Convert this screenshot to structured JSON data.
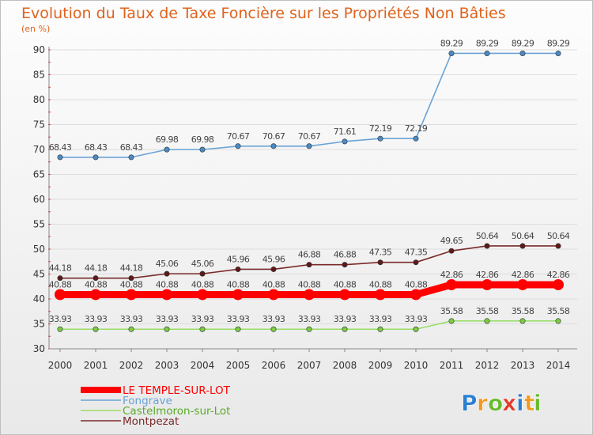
{
  "chart_data": {
    "type": "line",
    "title": "Evolution du Taux de Taxe Foncière sur les Propriétés Non Bâties",
    "subtitle": "(en %)",
    "x": [
      2000,
      2001,
      2002,
      2003,
      2004,
      2005,
      2006,
      2007,
      2008,
      2009,
      2010,
      2011,
      2012,
      2013,
      2014
    ],
    "ylim": [
      30,
      90
    ],
    "yticks": [
      30,
      35,
      40,
      45,
      50,
      55,
      60,
      65,
      70,
      75,
      80,
      85,
      90
    ],
    "grid": "horizontal",
    "legend_position": "bottom-left",
    "series": [
      {
        "name": "Fongrave",
        "color": "#6aa3d6",
        "marker": "#4a8ac4",
        "values": [
          68.43,
          68.43,
          68.43,
          69.98,
          69.98,
          70.67,
          70.67,
          70.67,
          71.61,
          72.19,
          72.19,
          89.29,
          89.29,
          89.29,
          89.29
        ],
        "labels": [
          "68.43",
          "68.43",
          "68.43",
          "69.98",
          "69.98",
          "70.67",
          "70.67",
          "70.67",
          "71.61",
          "72.19",
          "72.19",
          "89.29",
          "89.29",
          "89.29",
          "89.29"
        ]
      },
      {
        "name": "Montpezat",
        "color": "#7a2a2a",
        "marker": "#5e1a1a",
        "values": [
          44.18,
          44.18,
          44.18,
          45.06,
          45.06,
          45.96,
          45.96,
          46.88,
          46.88,
          47.35,
          47.35,
          49.65,
          50.64,
          50.64,
          50.64
        ],
        "labels": [
          "44.18",
          "44.18",
          "44.18",
          "45.06",
          "45.06",
          "45.96",
          "45.96",
          "46.88",
          "46.88",
          "47.35",
          "47.35",
          "49.65",
          "50.64",
          "50.64",
          "50.64"
        ]
      },
      {
        "name": "LE TEMPLE-SUR-LOT",
        "color": "#ff0000",
        "marker": "#ff0000",
        "values": [
          40.88,
          40.88,
          40.88,
          40.88,
          40.88,
          40.88,
          40.88,
          40.88,
          40.88,
          40.88,
          40.88,
          42.86,
          42.86,
          42.86,
          42.86
        ],
        "labels": [
          "40.88",
          "40.88",
          "40.88",
          "40.88",
          "40.88",
          "40.88",
          "40.88",
          "40.88",
          "40.88",
          "40.88",
          "40.88",
          "42.86",
          "42.86",
          "42.86",
          "42.86"
        ]
      },
      {
        "name": "Castelmoron-sur-Lot",
        "color": "#99dd66",
        "marker": "#7ccc44",
        "values": [
          33.93,
          33.93,
          33.93,
          33.93,
          33.93,
          33.93,
          33.93,
          33.93,
          33.93,
          33.93,
          33.93,
          35.58,
          35.58,
          35.58,
          35.58
        ],
        "labels": [
          "33.93",
          "33.93",
          "33.93",
          "33.93",
          "33.93",
          "33.93",
          "33.93",
          "33.93",
          "33.93",
          "33.93",
          "33.93",
          "35.58",
          "35.58",
          "35.58",
          "35.58"
        ]
      }
    ],
    "legend_order": [
      "LE TEMPLE-SUR-LOT",
      "Fongrave",
      "Castelmoron-sur-Lot",
      "Montpezat"
    ]
  },
  "logo": {
    "text": "Proxiti",
    "letters": [
      "P",
      "r",
      "o",
      "x",
      "i",
      "t",
      "i"
    ],
    "colors": [
      "#2a7fd0",
      "#f29a1d",
      "#66bb2a",
      "#e23a2a",
      "#2a7fd0",
      "#f29a1d",
      "#66bb2a"
    ]
  }
}
